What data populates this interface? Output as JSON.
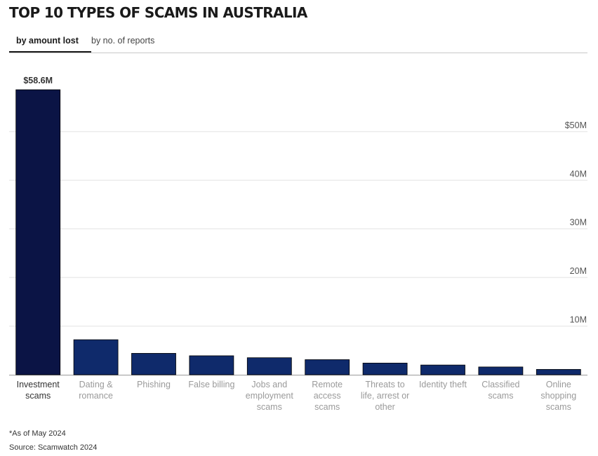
{
  "title": "TOP 10 TYPES OF SCAMS IN AUSTRALIA",
  "tabs": [
    {
      "label": "by amount lost",
      "active": true
    },
    {
      "label": "by no. of reports",
      "active": false
    }
  ],
  "chart_data": {
    "type": "bar",
    "categories": [
      [
        "Investment",
        "scams"
      ],
      [
        "Dating &",
        "romance"
      ],
      [
        "Phishing"
      ],
      [
        "False billing"
      ],
      [
        "Jobs and",
        "employment",
        "scams"
      ],
      [
        "Remote",
        "access",
        "scams"
      ],
      [
        "Threats to",
        "life, arrest or",
        "other"
      ],
      [
        "Identity theft"
      ],
      [
        "Classified",
        "scams"
      ],
      [
        "Online",
        "shopping",
        "scams"
      ]
    ],
    "values": [
      58.6,
      7.2,
      4.4,
      3.9,
      3.5,
      3.1,
      2.4,
      2.0,
      1.6,
      1.1
    ],
    "unit": "M",
    "ylim": [
      0,
      62
    ],
    "yticks": [
      10,
      20,
      30,
      40,
      50
    ],
    "ytick_labels": [
      "10M",
      "20M",
      "30M",
      "40M",
      "$50M"
    ],
    "data_labels": [
      "$58.6M"
    ],
    "colors": {
      "highlight": "#0b1445",
      "default": "#0f2a6b"
    },
    "grid": true
  },
  "notes": {
    "as_of": "*As of May 2024",
    "source": "Source: Scamwatch 2024"
  }
}
